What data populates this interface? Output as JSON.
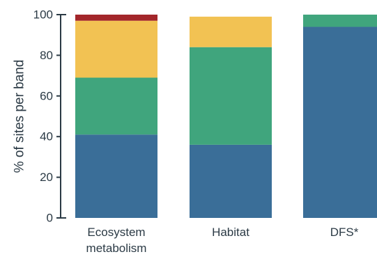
{
  "chart_data": {
    "type": "bar",
    "stacked": true,
    "categories": [
      [
        "Ecosystem",
        "metabolism"
      ],
      [
        "Habitat"
      ],
      [
        "DFS*"
      ]
    ],
    "series": [
      {
        "color": "#3a6e98",
        "values": [
          41,
          36,
          94
        ]
      },
      {
        "color": "#40a57d",
        "values": [
          28,
          48,
          6
        ]
      },
      {
        "color": "#f2c253",
        "values": [
          28,
          15,
          0
        ]
      },
      {
        "color": "#a3262a",
        "values": [
          3,
          0,
          0
        ]
      }
    ],
    "ylabel": "% of sites per band",
    "ylim": [
      0,
      100
    ],
    "yticks": [
      0,
      20,
      40,
      60,
      80,
      100
    ],
    "grid": false
  }
}
